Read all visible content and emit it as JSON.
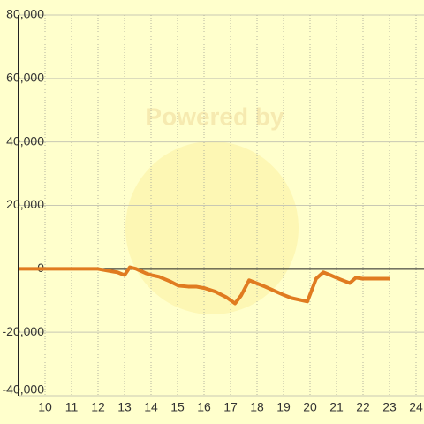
{
  "chart_data": {
    "type": "line",
    "watermark": "Powered by",
    "x": [
      9,
      11.97,
      12.5,
      12.73,
      13,
      13.2,
      13.43,
      13.8,
      14.03,
      14.3,
      14.7,
      15.03,
      15.4,
      15.7,
      16.03,
      16.43,
      16.83,
      17.17,
      17.4,
      17.7,
      17.97,
      18.3,
      18.67,
      18.97,
      19.3,
      19.63,
      19.9,
      20.23,
      20.5,
      20.77,
      21.13,
      21.5,
      21.73,
      21.97,
      23
    ],
    "series": [
      {
        "color": "#e07b20",
        "values": [
          0,
          0,
          -800,
          -1100,
          -2000,
          500,
          0,
          -1400,
          -2000,
          -2500,
          -3900,
          -5300,
          -5600,
          -5600,
          -6100,
          -7200,
          -8900,
          -10900,
          -8400,
          -3600,
          -4500,
          -5600,
          -7000,
          -8100,
          -9200,
          -9800,
          -10300,
          -3100,
          -1100,
          -2000,
          -3300,
          -4500,
          -2800,
          -3100,
          -3100
        ]
      }
    ],
    "xlim": [
      9,
      24.3
    ],
    "ylim": [
      -40000,
      80000
    ],
    "xticks": [
      10,
      11,
      12,
      13,
      14,
      15,
      16,
      17,
      18,
      19,
      20,
      21,
      22,
      23,
      24
    ],
    "yticks": [
      {
        "value": -40000,
        "label": "-40,000"
      },
      {
        "value": -20000,
        "label": "-20,000"
      },
      0,
      {
        "value": 20000,
        "label": "20,000"
      },
      {
        "value": 40000,
        "label": "40,000"
      },
      {
        "value": 60000,
        "label": "60,000"
      },
      {
        "value": 80000,
        "label": "80,000"
      }
    ],
    "grid": true
  }
}
